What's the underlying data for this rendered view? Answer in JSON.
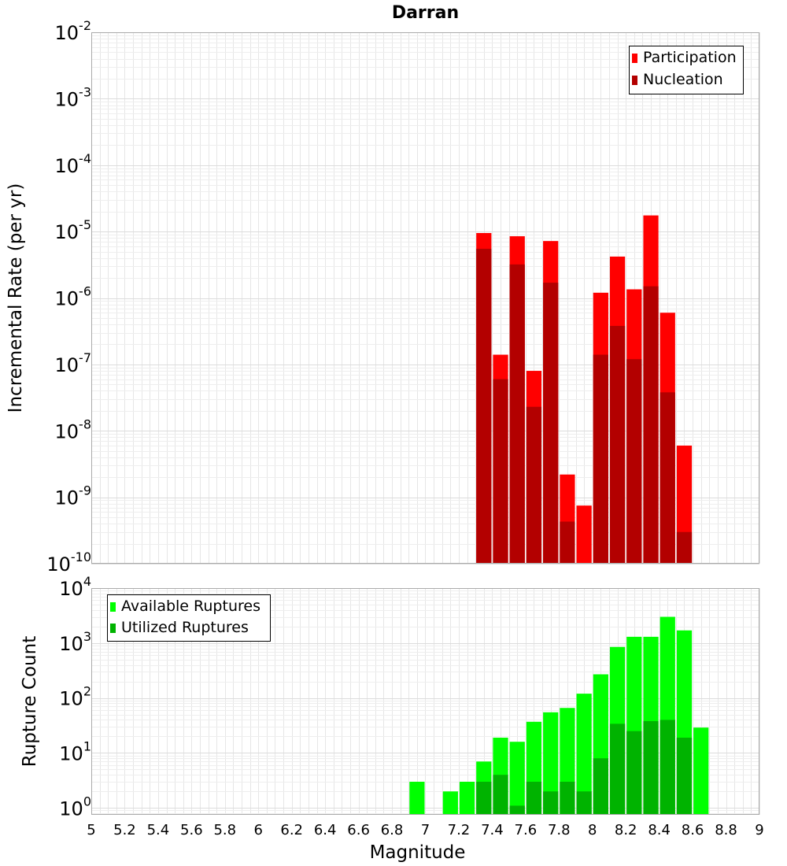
{
  "chart_data": [
    {
      "type": "bar",
      "title": "Darran",
      "xlabel": "",
      "ylabel": "Incremental Rate (per yr)",
      "yscale": "log",
      "xlim": [
        5,
        9
      ],
      "ylim": [
        1e-10,
        0.01
      ],
      "ytick_exponents": [
        -2,
        -3,
        -4,
        -5,
        -6,
        -7,
        -8,
        -9,
        -10
      ],
      "ytick_base": "10",
      "bin_width": 0.1,
      "legend_position": "top-right",
      "grid": true,
      "series": [
        {
          "name": "Participation",
          "color": "#ff0000",
          "x": [
            7.35,
            7.45,
            7.55,
            7.65,
            7.75,
            7.85,
            7.95,
            8.05,
            8.15,
            8.25,
            8.35,
            8.45,
            8.55
          ],
          "values": [
            9.5e-06,
            1.4e-07,
            8.5e-06,
            8e-08,
            7.2e-06,
            2.2e-09,
            7.5e-10,
            1.2e-06,
            4.2e-06,
            1.35e-06,
            1.75e-05,
            6e-07,
            6e-09
          ]
        },
        {
          "name": "Nucleation",
          "color": "#b30000",
          "x": [
            7.35,
            7.45,
            7.55,
            7.65,
            7.75,
            7.85,
            7.95,
            8.05,
            8.15,
            8.25,
            8.35,
            8.45,
            8.55
          ],
          "values": [
            5.5e-06,
            6e-08,
            3.2e-06,
            2.3e-08,
            1.7e-06,
            4.3e-10,
            null,
            1.4e-07,
            3.8e-07,
            1.2e-07,
            1.5e-06,
            3.8e-08,
            3e-10
          ]
        }
      ]
    },
    {
      "type": "bar",
      "title": "",
      "xlabel": "Magnitude",
      "ylabel": "Rupture Count",
      "yscale": "log",
      "xlim": [
        5,
        9
      ],
      "ylim": [
        0.75,
        10000
      ],
      "ytick_exponents": [
        4,
        3,
        2,
        1,
        0
      ],
      "ytick_base": "10",
      "xticks": [
        "5",
        "5.2",
        "5.4",
        "5.6",
        "5.8",
        "6",
        "6.2",
        "6.4",
        "6.6",
        "6.8",
        "7",
        "7.2",
        "7.4",
        "7.6",
        "7.8",
        "8",
        "8.2",
        "8.4",
        "8.6",
        "8.8",
        "9"
      ],
      "bin_width": 0.1,
      "legend_position": "top-left",
      "grid": true,
      "series": [
        {
          "name": "Available Ruptures",
          "color": "#00ff00",
          "x": [
            6.95,
            7.15,
            7.25,
            7.35,
            7.45,
            7.55,
            7.65,
            7.75,
            7.85,
            7.95,
            8.05,
            8.15,
            8.25,
            8.35,
            8.45,
            8.55,
            8.65
          ],
          "values": [
            3,
            2,
            3,
            7,
            19,
            16,
            37,
            55,
            66,
            120,
            270,
            850,
            1300,
            1300,
            3000,
            1700,
            29
          ]
        },
        {
          "name": "Utilized Ruptures",
          "color": "#00b300",
          "x": [
            7.35,
            7.45,
            7.55,
            7.65,
            7.75,
            7.85,
            7.95,
            8.05,
            8.15,
            8.25,
            8.35,
            8.45,
            8.55
          ],
          "values": [
            3,
            4,
            1.1,
            3,
            2,
            3,
            2,
            8,
            34,
            25,
            38,
            40,
            19
          ]
        }
      ]
    }
  ]
}
